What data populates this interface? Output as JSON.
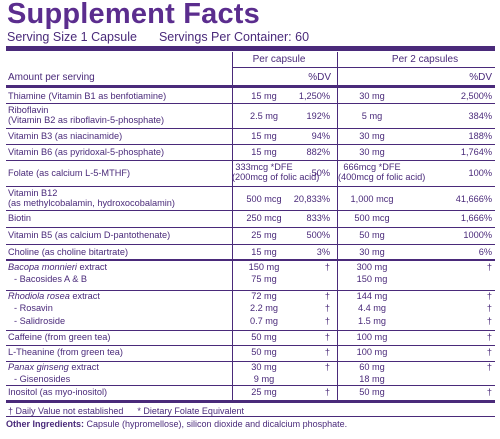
{
  "title": "Supplement Facts",
  "serving_size": "Serving Size 1 Capsule",
  "servings_per_container": "Servings Per Container: 60",
  "header": {
    "per_capsule": "Per capsule",
    "per_2_capsules": "Per 2 capsules",
    "amount_per_serving": "Amount per serving",
    "dv1": "%DV",
    "dv2": "%DV"
  },
  "rows": [
    {
      "name": "Thiamine (Vitamin B1 as benfotiamine)",
      "amt1": "15 mg",
      "dv1": "1,250%",
      "amt2": "30 mg",
      "dv2": "2,500%"
    },
    {
      "name": "Riboflavin",
      "name2": "(Vitamin B2 as riboflavin-5-phosphate)",
      "amt1": "2.5 mg",
      "dv1": "192%",
      "amt2": "5 mg",
      "dv2": "384%"
    },
    {
      "name": "Vitamin B3 (as niacinamide)",
      "amt1": "15 mg",
      "dv1": "94%",
      "amt2": "30 mg",
      "dv2": "188%"
    },
    {
      "name": "Vitamin B6 (as pyridoxal-5-phosphate)",
      "amt1": "15 mg",
      "dv1": "882%",
      "amt2": "30 mg",
      "dv2": "1,764%"
    },
    {
      "name": "Folate (as calcium L-5-MTHF)",
      "amt1": "333mcg *DFE",
      "amt1b": "(200mcg of folic acid)",
      "dv1": "50%",
      "amt2": "666mcg *DFE",
      "amt2b": "(400mcg of folic acid)",
      "dv2": "100%"
    },
    {
      "name": "Vitamin B12",
      "name2": "(as methylcobalamin, hydroxocobalamin)",
      "amt1": "500 mcg",
      "dv1": "20,833%",
      "amt2": "1,000 mcg",
      "dv2": "41,666%"
    },
    {
      "name": "Biotin",
      "amt1": "250 mcg",
      "dv1": "833%",
      "amt2": "500 mcg",
      "dv2": "1,666%"
    },
    {
      "name": "Vitamin B5 (as calcium D-pantothenate)",
      "amt1": "25 mg",
      "dv1": "500%",
      "amt2": "50 mg",
      "dv2": "1000%"
    },
    {
      "name": "Choline (as choline bitartrate)",
      "amt1": "15 mg",
      "dv1": "3%",
      "amt2": "30 mg",
      "dv2": "6%"
    }
  ],
  "herbs": [
    {
      "name_italic": "Bacopa monnieri",
      "name_rest": " extract",
      "sub": "- Bacosides A & B",
      "amt1": "150 mg",
      "amt1b": "75 mg",
      "dv1": "†",
      "amt2": "300 mg",
      "amt2b": "150 mg",
      "dv2": "†"
    },
    {
      "name_italic": "Rhodiola rosea",
      "name_rest": " extract",
      "sub": "- Rosavin",
      "sub2": "- Salidroside",
      "amt1": "72 mg",
      "amt1b": "2.2 mg",
      "amt1c": "0.7 mg",
      "dv1": "†",
      "dv1b": "†",
      "dv1c": "†",
      "amt2": "144 mg",
      "amt2b": "4.4 mg",
      "amt2c": "1.5 mg",
      "dv2": "†",
      "dv2b": "†",
      "dv2c": "†"
    },
    {
      "name": "Caffeine (from green tea)",
      "amt1": "50 mg",
      "dv1": "†",
      "amt2": "100 mg",
      "dv2": "†"
    },
    {
      "name": "L-Theanine (from green tea)",
      "amt1": "50 mg",
      "dv1": "†",
      "amt2": "100 mg",
      "dv2": "†"
    },
    {
      "name_italic": "Panax ginseng",
      "name_rest": " extract",
      "sub": "- Gisenosides",
      "amt1": "30 mg",
      "amt1b": "9 mg",
      "dv1": "†",
      "amt2": "60 mg",
      "amt2b": "18 mg",
      "dv2": "†"
    },
    {
      "name": "Inositol (as myo-inositol)",
      "amt1": "25 mg",
      "dv1": "†",
      "amt2": "50 mg",
      "dv2": "†"
    }
  ],
  "footnote_dv": "† Daily Value not established",
  "footnote_dfe": "* Dietary Folate Equivalent",
  "other_label": "Other Ingredients:",
  "other_text": " Capsule (hypromellose), silicon dioxide and dicalcium phosphate."
}
